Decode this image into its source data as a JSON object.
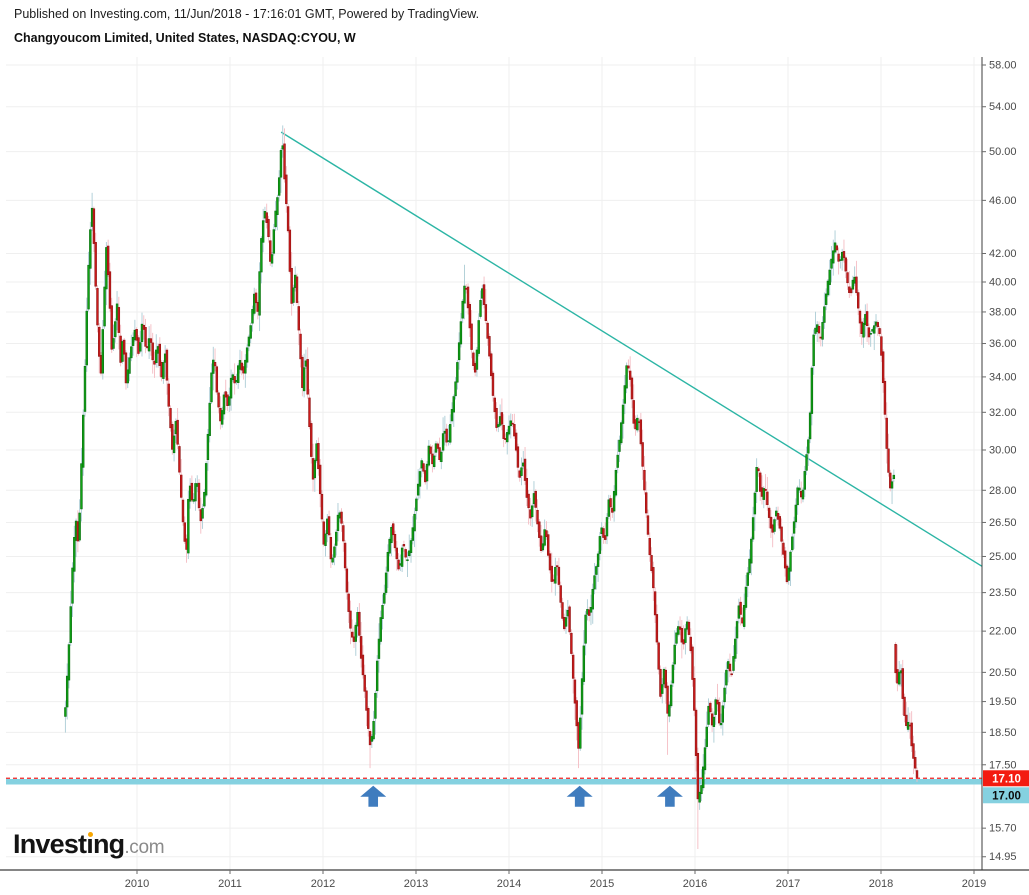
{
  "header": {
    "published": "Published on Investing.com, 11/Jun/2018 - 17:16:01 GMT, Powered by TradingView.",
    "title": "Changyoucom Limited, United States, NASDAQ:CYOU, W"
  },
  "logo": {
    "prefix": "Invest",
    "dotless_i": "ı",
    "suffix": "ng",
    "domain": ".com"
  },
  "chart_data": {
    "type": "candlestick",
    "title": "Changyoucom Limited, United States, NASDAQ:CYOU, W",
    "symbol": "NASDAQ:CYOU",
    "company": "Changyoucom Limited",
    "country": "United States",
    "interval": "W",
    "y_scale": "log",
    "grid": true,
    "x_ticks": [
      2010,
      2011,
      2012,
      2013,
      2014,
      2015,
      2016,
      2017,
      2018,
      2019
    ],
    "y_ticks": [
      58,
      54,
      50,
      46,
      42,
      40,
      38,
      36,
      34,
      32,
      30,
      28,
      26.5,
      25,
      23.5,
      22,
      20.5,
      19.5,
      18.5,
      17.5,
      15.7,
      14.95
    ],
    "last_price": {
      "value": 17.1,
      "label": "17.10"
    },
    "support_level": {
      "value": 17.0,
      "label": "17.00"
    },
    "trendline": {
      "from": {
        "t": 2011.55,
        "price": 51.7
      },
      "to": {
        "t": 2019.12,
        "price": 24.5
      }
    },
    "arrows": [
      {
        "t": 2012.54
      },
      {
        "t": 2014.76
      },
      {
        "t": 2015.73
      }
    ],
    "series": {
      "start": 2009.23,
      "end": 2018.392,
      "weeks_per_year": 52.2,
      "close_anchors": [
        [
          2009.23,
          19.3
        ],
        [
          2009.27,
          21.6
        ],
        [
          2009.31,
          24.8
        ],
        [
          2009.34,
          26.8
        ],
        [
          2009.37,
          25.4
        ],
        [
          2009.4,
          29.0
        ],
        [
          2009.44,
          34.5
        ],
        [
          2009.47,
          40.0
        ],
        [
          2009.5,
          44.0
        ],
        [
          2009.52,
          45.6
        ],
        [
          2009.55,
          40.5
        ],
        [
          2009.58,
          36.5
        ],
        [
          2009.61,
          33.8
        ],
        [
          2009.64,
          38.0
        ],
        [
          2009.67,
          42.5
        ],
        [
          2009.7,
          39.5
        ],
        [
          2009.73,
          35.4
        ],
        [
          2009.76,
          37.0
        ],
        [
          2009.79,
          38.8
        ],
        [
          2009.82,
          34.6
        ],
        [
          2009.85,
          36.6
        ],
        [
          2009.88,
          33.6
        ],
        [
          2009.91,
          34.8
        ],
        [
          2009.95,
          36.2
        ],
        [
          2009.98,
          36.9
        ],
        [
          2010.02,
          35.2
        ],
        [
          2010.06,
          37.6
        ],
        [
          2010.1,
          35.4
        ],
        [
          2010.14,
          36.6
        ],
        [
          2010.18,
          34.4
        ],
        [
          2010.22,
          36.2
        ],
        [
          2010.26,
          33.8
        ],
        [
          2010.3,
          35.6
        ],
        [
          2010.34,
          32.4
        ],
        [
          2010.38,
          30.0
        ],
        [
          2010.42,
          31.6
        ],
        [
          2010.46,
          28.6
        ],
        [
          2010.5,
          26.2
        ],
        [
          2010.53,
          25.0
        ],
        [
          2010.56,
          28.6
        ],
        [
          2010.6,
          27.2
        ],
        [
          2010.64,
          28.8
        ],
        [
          2010.68,
          26.4
        ],
        [
          2010.72,
          27.6
        ],
        [
          2010.76,
          30.6
        ],
        [
          2010.8,
          34.2
        ],
        [
          2010.83,
          35.4
        ],
        [
          2010.86,
          33.0
        ],
        [
          2010.9,
          31.4
        ],
        [
          2010.94,
          33.2
        ],
        [
          2010.98,
          32.2
        ],
        [
          2011.02,
          34.4
        ],
        [
          2011.06,
          33.4
        ],
        [
          2011.1,
          35.2
        ],
        [
          2011.14,
          34.0
        ],
        [
          2011.18,
          35.6
        ],
        [
          2011.22,
          37.0
        ],
        [
          2011.26,
          39.2
        ],
        [
          2011.3,
          38.0
        ],
        [
          2011.33,
          42.6
        ],
        [
          2011.37,
          45.4
        ],
        [
          2011.41,
          43.6
        ],
        [
          2011.44,
          40.8
        ],
        [
          2011.48,
          44.6
        ],
        [
          2011.52,
          46.8
        ],
        [
          2011.56,
          51.6
        ],
        [
          2011.59,
          47.2
        ],
        [
          2011.62,
          44.4
        ],
        [
          2011.66,
          38.4
        ],
        [
          2011.7,
          40.6
        ],
        [
          2011.74,
          36.8
        ],
        [
          2011.78,
          33.2
        ],
        [
          2011.81,
          35.6
        ],
        [
          2011.85,
          31.6
        ],
        [
          2011.89,
          28.4
        ],
        [
          2011.93,
          30.4
        ],
        [
          2011.97,
          27.8
        ],
        [
          2012.01,
          25.4
        ],
        [
          2012.05,
          26.8
        ],
        [
          2012.09,
          24.6
        ],
        [
          2012.13,
          25.6
        ],
        [
          2012.17,
          27.2
        ],
        [
          2012.21,
          26.2
        ],
        [
          2012.25,
          23.8
        ],
        [
          2012.29,
          22.2
        ],
        [
          2012.33,
          21.5
        ],
        [
          2012.37,
          22.8
        ],
        [
          2012.41,
          21.0
        ],
        [
          2012.45,
          19.8
        ],
        [
          2012.48,
          18.8
        ],
        [
          2012.51,
          18.0
        ],
        [
          2012.55,
          19.0
        ],
        [
          2012.58,
          20.8
        ],
        [
          2012.62,
          22.5
        ],
        [
          2012.66,
          23.5
        ],
        [
          2012.7,
          25.3
        ],
        [
          2012.74,
          26.4
        ],
        [
          2012.78,
          25.2
        ],
        [
          2012.82,
          24.3
        ],
        [
          2012.86,
          25.7
        ],
        [
          2012.9,
          24.7
        ],
        [
          2012.94,
          25.5
        ],
        [
          2012.98,
          26.7
        ],
        [
          2013.02,
          28.2
        ],
        [
          2013.06,
          29.5
        ],
        [
          2013.1,
          28.4
        ],
        [
          2013.14,
          30.3
        ],
        [
          2013.18,
          29.2
        ],
        [
          2013.22,
          30.5
        ],
        [
          2013.26,
          29.3
        ],
        [
          2013.3,
          31.3
        ],
        [
          2013.34,
          30.1
        ],
        [
          2013.38,
          31.9
        ],
        [
          2013.42,
          33.4
        ],
        [
          2013.46,
          35.8
        ],
        [
          2013.5,
          38.6
        ],
        [
          2013.53,
          40.2
        ],
        [
          2013.57,
          37.6
        ],
        [
          2013.61,
          34.8
        ],
        [
          2013.64,
          34.2
        ],
        [
          2013.68,
          38.0
        ],
        [
          2013.71,
          39.7
        ],
        [
          2013.75,
          37.5
        ],
        [
          2013.79,
          35.2
        ],
        [
          2013.83,
          32.8
        ],
        [
          2013.87,
          31.0
        ],
        [
          2013.91,
          31.9
        ],
        [
          2013.95,
          30.3
        ],
        [
          2013.99,
          31.1
        ],
        [
          2014.03,
          31.7
        ],
        [
          2014.07,
          30.3
        ],
        [
          2014.11,
          28.5
        ],
        [
          2014.15,
          29.5
        ],
        [
          2014.19,
          27.7
        ],
        [
          2014.23,
          26.7
        ],
        [
          2014.27,
          27.9
        ],
        [
          2014.31,
          26.3
        ],
        [
          2014.35,
          25.1
        ],
        [
          2014.39,
          26.4
        ],
        [
          2014.43,
          24.7
        ],
        [
          2014.47,
          23.7
        ],
        [
          2014.51,
          24.9
        ],
        [
          2014.55,
          23.3
        ],
        [
          2014.59,
          22.0
        ],
        [
          2014.63,
          22.9
        ],
        [
          2014.67,
          21.2
        ],
        [
          2014.71,
          19.4
        ],
        [
          2014.75,
          17.9
        ],
        [
          2014.79,
          20.6
        ],
        [
          2014.83,
          23.0
        ],
        [
          2014.87,
          22.5
        ],
        [
          2014.91,
          24.0
        ],
        [
          2014.95,
          24.8
        ],
        [
          2014.99,
          26.4
        ],
        [
          2015.03,
          25.5
        ],
        [
          2015.07,
          27.6
        ],
        [
          2015.11,
          26.9
        ],
        [
          2015.15,
          29.0
        ],
        [
          2015.19,
          30.6
        ],
        [
          2015.23,
          32.6
        ],
        [
          2015.27,
          35.0
        ],
        [
          2015.31,
          33.6
        ],
        [
          2015.35,
          30.8
        ],
        [
          2015.39,
          32.0
        ],
        [
          2015.43,
          29.6
        ],
        [
          2015.47,
          27.2
        ],
        [
          2015.51,
          25.2
        ],
        [
          2015.55,
          23.8
        ],
        [
          2015.59,
          21.6
        ],
        [
          2015.63,
          19.6
        ],
        [
          2015.67,
          20.7
        ],
        [
          2015.71,
          18.9
        ],
        [
          2015.75,
          20.3
        ],
        [
          2015.79,
          21.8
        ],
        [
          2015.83,
          22.3
        ],
        [
          2015.87,
          21.3
        ],
        [
          2015.91,
          22.5
        ],
        [
          2015.95,
          21.5
        ],
        [
          2015.99,
          19.4
        ],
        [
          2016.03,
          16.5
        ],
        [
          2016.07,
          16.9
        ],
        [
          2016.11,
          18.1
        ],
        [
          2016.15,
          19.5
        ],
        [
          2016.19,
          18.6
        ],
        [
          2016.23,
          19.8
        ],
        [
          2016.27,
          18.5
        ],
        [
          2016.31,
          19.7
        ],
        [
          2016.35,
          21.0
        ],
        [
          2016.39,
          20.3
        ],
        [
          2016.43,
          21.6
        ],
        [
          2016.47,
          23.0
        ],
        [
          2016.51,
          22.3
        ],
        [
          2016.55,
          23.8
        ],
        [
          2016.59,
          25.0
        ],
        [
          2016.63,
          27.0
        ],
        [
          2016.67,
          29.6
        ],
        [
          2016.71,
          27.5
        ],
        [
          2016.75,
          28.3
        ],
        [
          2016.79,
          26.9
        ],
        [
          2016.83,
          25.9
        ],
        [
          2016.87,
          27.1
        ],
        [
          2016.91,
          26.3
        ],
        [
          2016.95,
          25.1
        ],
        [
          2016.99,
          23.9
        ],
        [
          2017.03,
          25.3
        ],
        [
          2017.07,
          26.7
        ],
        [
          2017.11,
          28.4
        ],
        [
          2017.15,
          27.5
        ],
        [
          2017.19,
          29.4
        ],
        [
          2017.23,
          31.0
        ],
        [
          2017.27,
          36.4
        ],
        [
          2017.31,
          37.3
        ],
        [
          2017.35,
          36.2
        ],
        [
          2017.39,
          38.3
        ],
        [
          2017.43,
          40.1
        ],
        [
          2017.47,
          41.7
        ],
        [
          2017.51,
          42.9
        ],
        [
          2017.55,
          41.2
        ],
        [
          2017.59,
          42.3
        ],
        [
          2017.63,
          40.3
        ],
        [
          2017.67,
          38.9
        ],
        [
          2017.71,
          40.7
        ],
        [
          2017.75,
          38.5
        ],
        [
          2017.79,
          36.5
        ],
        [
          2017.83,
          37.9
        ],
        [
          2017.87,
          36.4
        ],
        [
          2017.91,
          36.9
        ],
        [
          2017.95,
          37.4
        ],
        [
          2017.99,
          36.5
        ],
        [
          2018.03,
          33.1
        ],
        [
          2018.07,
          29.3
        ],
        [
          2018.1,
          28.1
        ],
        [
          2018.142,
          28.8
        ],
        [
          2018.152,
          20.6
        ],
        [
          2018.175,
          20.1
        ],
        [
          2018.21,
          20.8
        ],
        [
          2018.24,
          19.3
        ],
        [
          2018.27,
          18.7
        ],
        [
          2018.305,
          18.9
        ],
        [
          2018.335,
          17.9
        ],
        [
          2018.365,
          17.45
        ],
        [
          2018.385,
          17.1
        ]
      ],
      "wick_overrides": [
        {
          "t": 2009.23,
          "low": 19.0
        },
        {
          "t": 2009.52,
          "high": 46.6
        },
        {
          "t": 2011.56,
          "high": 52.3
        },
        {
          "t": 2012.51,
          "low": 17.4
        },
        {
          "t": 2013.53,
          "high": 41.2
        },
        {
          "t": 2014.75,
          "low": 17.4
        },
        {
          "t": 2015.71,
          "low": 17.8
        },
        {
          "t": 2016.03,
          "low": 15.15
        },
        {
          "t": 2017.51,
          "high": 43.7
        },
        {
          "t": 2018.175,
          "high": 21.5
        },
        {
          "t": 2018.385,
          "low": 17.05
        }
      ]
    },
    "colors": {
      "up_body": "#0fa214",
      "up_border": "#0a6e10",
      "up_wick": "#abccd5",
      "down_body": "#cc1b1b",
      "down_border": "#8f1414",
      "down_wick": "#f4bcc3",
      "trendline": "#2cb5a5",
      "support": "#85d1e0",
      "price_line": "#ef2020",
      "badge_last_bg": "#f31b10",
      "badge_last_fg": "#ffffff",
      "badge_support_bg": "#85d1e0",
      "badge_support_fg": "#0c0c0c",
      "grid": "#efefef",
      "axis": "#3c3c3c",
      "tick_text": "#4a4a4a",
      "arrow": "#3f7cbe"
    }
  }
}
